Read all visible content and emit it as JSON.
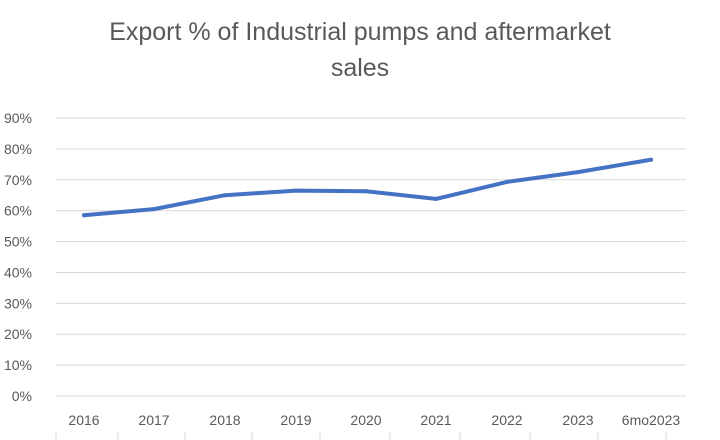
{
  "chart_data": {
    "type": "line",
    "title_lines": [
      "Export % of Industrial pumps and aftermarket",
      "sales"
    ],
    "xlabel": "",
    "ylabel": "",
    "categories": [
      "2016",
      "2017",
      "2018",
      "2019",
      "2020",
      "2021",
      "2022",
      "2023",
      "6mo2023"
    ],
    "series": [
      {
        "values": [
          0.585,
          0.605,
          0.65,
          0.665,
          0.663,
          0.638,
          0.693,
          0.725,
          0.765
        ]
      }
    ],
    "ylim": [
      0,
      0.9
    ],
    "yticks": [
      {
        "value": 0.0,
        "label": "0%"
      },
      {
        "value": 0.1,
        "label": "10%"
      },
      {
        "value": 0.2,
        "label": "20%"
      },
      {
        "value": 0.3,
        "label": "30%"
      },
      {
        "value": 0.4,
        "label": "40%"
      },
      {
        "value": 0.5,
        "label": "50%"
      },
      {
        "value": 0.6,
        "label": "60%"
      },
      {
        "value": 0.7,
        "label": "70%"
      },
      {
        "value": 0.8,
        "label": "80%"
      },
      {
        "value": 0.9,
        "label": "90%"
      }
    ],
    "grid": true,
    "legend": "none",
    "colors": {
      "line": "#4472C4",
      "grid": "#D9D9D9",
      "tick_text": "#595959",
      "title_text": "#595959"
    }
  }
}
